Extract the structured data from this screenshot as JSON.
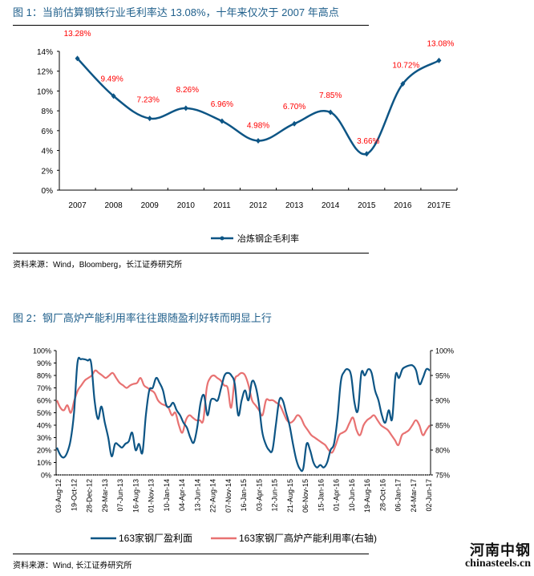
{
  "figure1": {
    "title": "图 1：当前估算钢铁行业毛利率达 13.08%，十年来仅次于 2007 年高点",
    "source": "资料来源：Wind，Bloomberg，长江证券研究所"
  },
  "figure2": {
    "title": "图 2：钢厂高炉产能利用率往往跟随盈利好转而明显上行",
    "source": "资料来源：Wind, 长江证券研究所"
  },
  "watermark": {
    "line1": "河南中钢",
    "line2": "chinasteels.cn"
  },
  "chart_data": [
    {
      "type": "line",
      "title": "",
      "xlabel": "",
      "ylabel": "",
      "categories": [
        "2007",
        "2008",
        "2009",
        "2010",
        "2011",
        "2012",
        "2013",
        "2014",
        "2015",
        "2016",
        "2017E"
      ],
      "series": [
        {
          "name": "冶炼钢企毛利率",
          "color": "#0d5585",
          "values": [
            13.28,
            9.49,
            7.23,
            8.26,
            6.96,
            4.98,
            6.7,
            7.85,
            3.66,
            10.72,
            13.08
          ]
        }
      ],
      "data_labels": [
        "13.28%",
        "9.49%",
        "7.23%",
        "8.26%",
        "6.96%",
        "4.98%",
        "6.70%",
        "7.85%",
        "3.66%",
        "10.72%",
        "13.08%"
      ],
      "label_color": "#ff0000",
      "ylim": [
        0,
        14
      ],
      "yticks": [
        "0%",
        "2%",
        "4%",
        "6%",
        "8%",
        "10%",
        "12%",
        "14%"
      ],
      "ytick_values": [
        0,
        2,
        4,
        6,
        8,
        10,
        12,
        14
      ],
      "grid": false,
      "legend": "bottom-center"
    },
    {
      "type": "line",
      "title": "",
      "xlabel": "",
      "categories": [
        "03-Aug-12",
        "19-Oct-12",
        "28-Dec-12",
        "29-Mar-13",
        "07-Jun-13",
        "16-Aug-13",
        "01-Nov-13",
        "10-Jan-14",
        "04-Apr-14",
        "13-Jun-14",
        "22-Aug-14",
        "07-Nov-14",
        "16-Jan-15",
        "03-Apr-15",
        "12-Jun-15",
        "21-Aug-15",
        "06-Nov-15",
        "15-Jan-16",
        "01-Apr-16",
        "10-Jun-16",
        "19-Aug-16",
        "28-Oct-16",
        "06-Jan-17",
        "24-Mar-17",
        "02-Jun-17"
      ],
      "ylim_left": [
        0,
        100
      ],
      "yticks_left": [
        "0%",
        "10%",
        "20%",
        "30%",
        "40%",
        "50%",
        "60%",
        "70%",
        "80%",
        "90%",
        "100%"
      ],
      "ylim_right": [
        75,
        100
      ],
      "yticks_right": [
        "75%",
        "80%",
        "85%",
        "90%",
        "95%",
        "100%"
      ],
      "grid": false,
      "legend": "bottom-center",
      "series": [
        {
          "name": "163家钢厂盈利面",
          "axis": "left",
          "color": "#0d5585",
          "values": [
            22,
            16,
            14,
            18,
            28,
            50,
            90,
            93,
            93,
            92,
            90,
            60,
            45,
            55,
            42,
            30,
            15,
            25,
            24,
            22,
            25,
            27,
            34,
            20,
            25,
            18,
            48,
            68,
            70,
            78,
            74,
            68,
            56,
            55,
            58,
            52,
            48,
            42,
            38,
            30,
            26,
            38,
            58,
            64,
            48,
            60,
            61,
            60,
            70,
            80,
            82,
            80,
            73,
            48,
            60,
            68,
            60,
            75,
            72,
            58,
            35,
            25,
            20,
            20,
            40,
            60,
            60,
            50,
            40,
            25,
            12,
            5,
            5,
            25,
            20,
            10,
            6,
            8,
            6,
            10,
            20,
            25,
            45,
            75,
            83,
            85,
            80,
            58,
            52,
            82,
            80,
            85,
            82,
            68,
            60,
            48,
            42,
            52,
            45,
            80,
            78,
            85,
            87,
            88,
            88,
            84,
            73,
            78,
            85,
            84
          ]
        },
        {
          "name": "163家钢厂高炉产能利用率(右轴)",
          "axis": "right",
          "color": "#e87272",
          "values": [
            90,
            88.5,
            88,
            89,
            87.5,
            90,
            92,
            93,
            94,
            94.5,
            95,
            96,
            95.5,
            95,
            94.5,
            95,
            95.5,
            94.5,
            93.5,
            93,
            92.5,
            93,
            93.3,
            93.5,
            94.5,
            93,
            92.5,
            92,
            91.5,
            90,
            89.3,
            89,
            88.5,
            87,
            87.5,
            85,
            83.5,
            86,
            87,
            86.5,
            86,
            86,
            86,
            92.5,
            94.5,
            95,
            94.5,
            94,
            93,
            92.5,
            88.5,
            94,
            95,
            95.5,
            95,
            93,
            90,
            89,
            88,
            87,
            90,
            90,
            90,
            89.5,
            89,
            87.5,
            86,
            85.5,
            86,
            87,
            86.5,
            85,
            84,
            83,
            82.5,
            82,
            81.5,
            81,
            80,
            79.5,
            81,
            83,
            83.5,
            84,
            85.5,
            86.5,
            84,
            83,
            85,
            86,
            86.5,
            87,
            86,
            85,
            84.5,
            84,
            83,
            82,
            81,
            83,
            83.5,
            84,
            85,
            86,
            85,
            83,
            84,
            85
          ]
        }
      ]
    }
  ]
}
